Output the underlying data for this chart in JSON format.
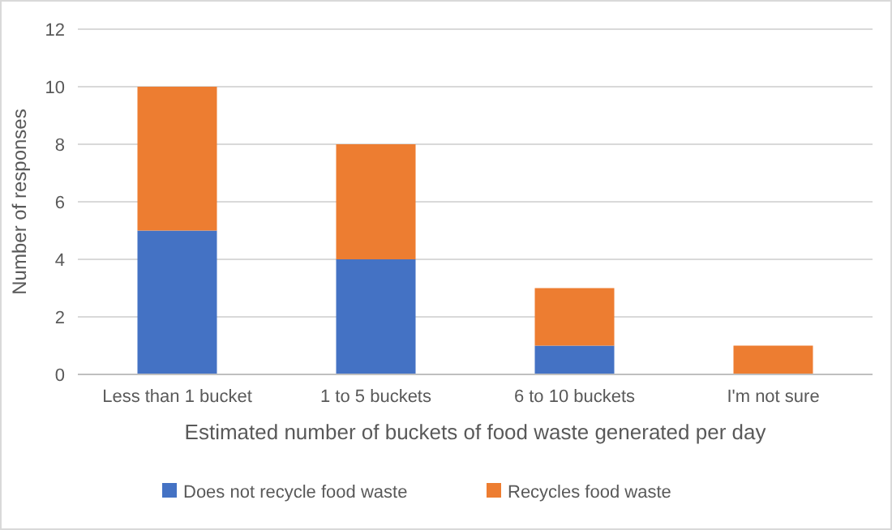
{
  "chart_data": {
    "type": "bar",
    "stacked": true,
    "xlabel": "Estimated number of buckets of food waste generated per day",
    "ylabel": "Number of responses",
    "categories": [
      "Less than 1 bucket",
      "1 to 5 buckets",
      "6 to 10 buckets",
      "I'm not sure"
    ],
    "series": [
      {
        "name": "Does not recycle food waste",
        "color": "#4472c4",
        "values": [
          5,
          4,
          1,
          0
        ]
      },
      {
        "name": "Recycles food waste",
        "color": "#ed7d31",
        "values": [
          5,
          4,
          2,
          1
        ]
      }
    ],
    "ylim": [
      0,
      12
    ],
    "yticks": [
      0,
      2,
      4,
      6,
      8,
      10,
      12
    ],
    "grid": "y",
    "legend": "bottom"
  }
}
